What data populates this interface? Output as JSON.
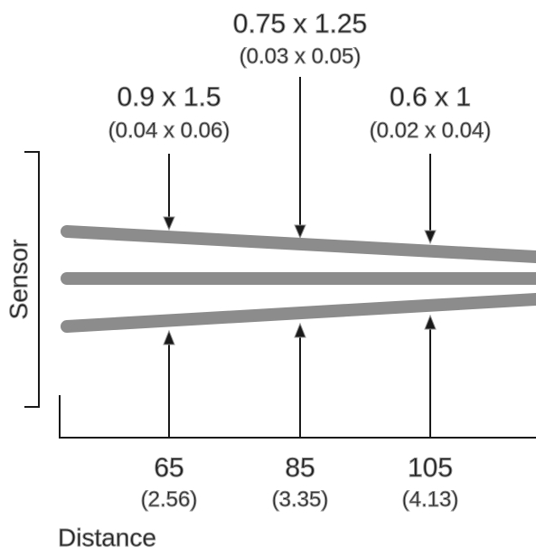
{
  "sensor_label": "Sensor",
  "distance_label": "Distance",
  "spots": [
    {
      "size": "0.9 x 1.5",
      "size_in": "(0.04 x 0.06)"
    },
    {
      "size": "0.75 x 1.25",
      "size_in": "(0.03 x 0.05)"
    },
    {
      "size": "0.6 x 1",
      "size_in": "(0.02 x 0.04)"
    }
  ],
  "distances": [
    {
      "mm": "65",
      "in": "(2.56)"
    },
    {
      "mm": "85",
      "in": "(3.35)"
    },
    {
      "mm": "105",
      "in": "(4.13)"
    }
  ],
  "colors": {
    "beam": "#8c8c8c",
    "line": "#1a1a1a"
  }
}
